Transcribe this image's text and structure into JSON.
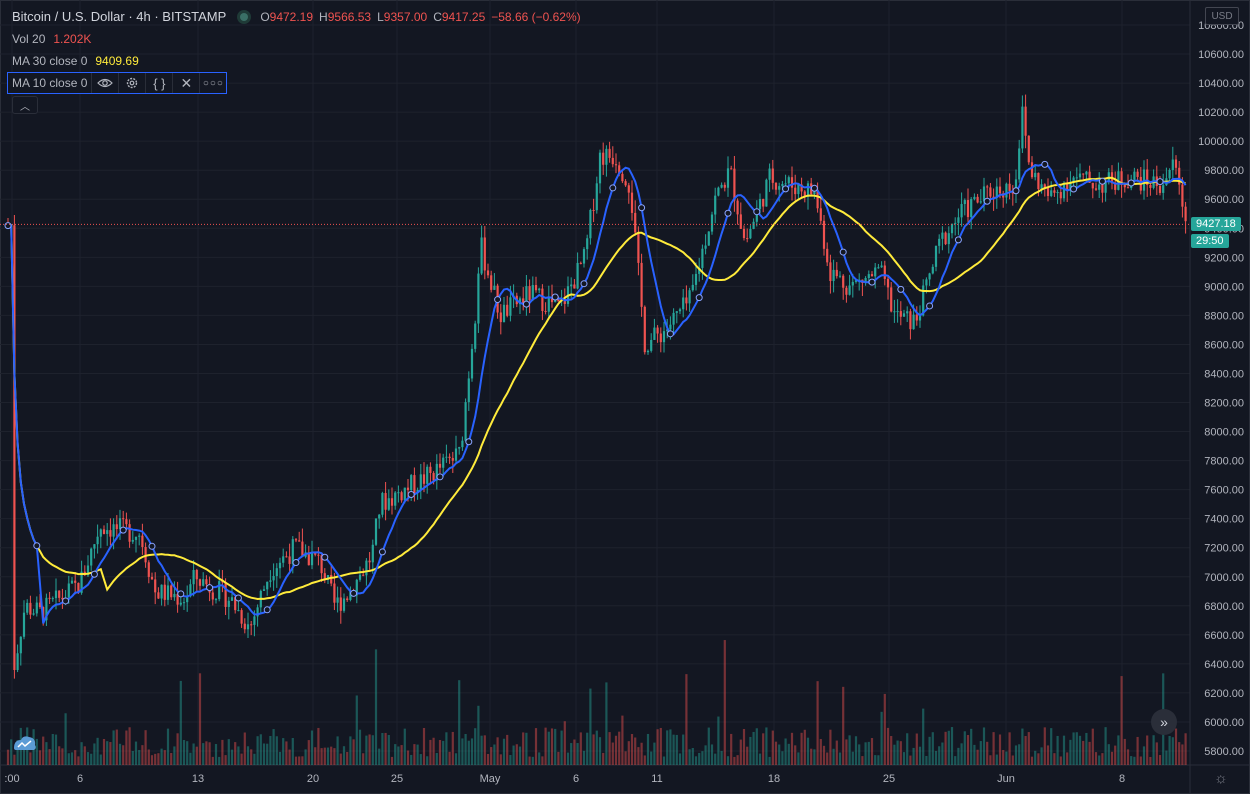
{
  "header": {
    "symbol_title": "Bitcoin / U.S. Dollar · 4h · BITSTAMP",
    "open_label": "O",
    "open_value": "9472.19",
    "high_label": "H",
    "high_value": "9566.53",
    "low_label": "L",
    "low_value": "9357.00",
    "close_label": "C",
    "close_value": "9417.25",
    "change": "−58.66 (−0.62%)"
  },
  "indicators": [
    {
      "label": "Vol 20",
      "value": "1.202K",
      "color": "#ef5350"
    },
    {
      "label": "MA 30 close 0",
      "value": "9409.69",
      "color": "#ffeb3b"
    },
    {
      "label": "MA 10 close 0",
      "value": "",
      "color": "#2962ff"
    }
  ],
  "scale": {
    "currency": "USD",
    "last_price": "9427.18",
    "countdown": "29:50",
    "last_price_color": "#26a69a",
    "price_line_color": "#ef5350"
  },
  "icons": {
    "eye": "eye-icon",
    "settings": "gear-icon",
    "source": "braces-icon",
    "remove": "close-icon",
    "more": "more-icon",
    "collapse": "chevron-up-icon",
    "scroll": "double-chevron-right-icon",
    "logo": "tradingview-logo-icon",
    "chart_settings": "settings-icon"
  },
  "chart_data": {
    "type": "candlestick",
    "ylim": [
      5700,
      10900
    ],
    "y_ticks": [
      5800,
      6000,
      6200,
      6400,
      6600,
      6800,
      7000,
      7200,
      7400,
      7600,
      7800,
      8000,
      8200,
      8400,
      8600,
      8800,
      9000,
      9200,
      9400,
      9600,
      9800,
      10000,
      10200,
      10400,
      10600,
      10800
    ],
    "x_ticks": [
      ":00",
      "6",
      "13",
      "20",
      "25",
      "May",
      "6",
      "11",
      "18",
      "25",
      "Jun",
      "8"
    ],
    "colors": {
      "up": "#26a69a",
      "down": "#ef5350",
      "ma10": "#2962ff",
      "ma30": "#ffeb3b",
      "grid": "#1e222d"
    },
    "grid": true,
    "anchors": [
      {
        "x": ":00",
        "price": 6300
      },
      {
        "x": "6",
        "price": 7150
      },
      {
        "x": "13",
        "price": 6850
      },
      {
        "x": "20",
        "price": 7100
      },
      {
        "x": "25",
        "price": 7500
      },
      {
        "x": "May",
        "price": 8850
      },
      {
        "x": "6",
        "price": 9900
      },
      {
        "x": "11",
        "price": 8800
      },
      {
        "x": "18",
        "price": 9700
      },
      {
        "x": "25",
        "price": 8750
      },
      {
        "x": "Jun",
        "price": 9700
      },
      {
        "x": "8",
        "price": 9700
      }
    ]
  }
}
